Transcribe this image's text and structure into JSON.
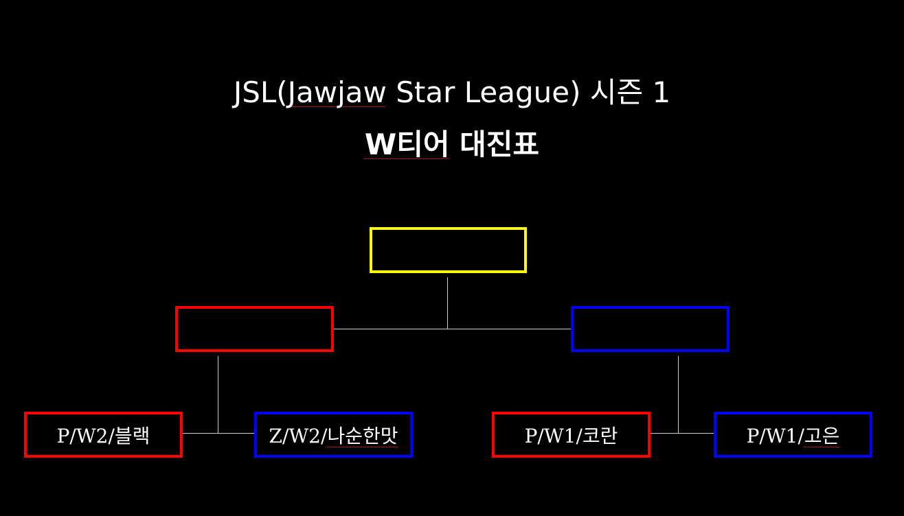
{
  "title": {
    "line1_prefix": "JSL(",
    "line1_word1": "Jawjaw",
    "line1_suffix": " Star League) 시즌 1",
    "line2_word1": "W티어",
    "line2_suffix": " 대진표"
  },
  "bracket": {
    "final": {
      "label": "",
      "color": "#ffff00"
    },
    "semifinal_left": {
      "label": "",
      "color": "#ff0000"
    },
    "semifinal_right": {
      "label": "",
      "color": "#0000ff"
    },
    "players": [
      {
        "label": "P/W2/블랙",
        "color": "#ff0000"
      },
      {
        "label_prefix": "Z/W2/",
        "label_name": "나순한맛",
        "color": "#0000ff"
      },
      {
        "label": "P/W1/코란",
        "color": "#ff0000"
      },
      {
        "label_prefix": "P/W1/",
        "label_name": "고은",
        "color": "#0000ff"
      }
    ]
  }
}
